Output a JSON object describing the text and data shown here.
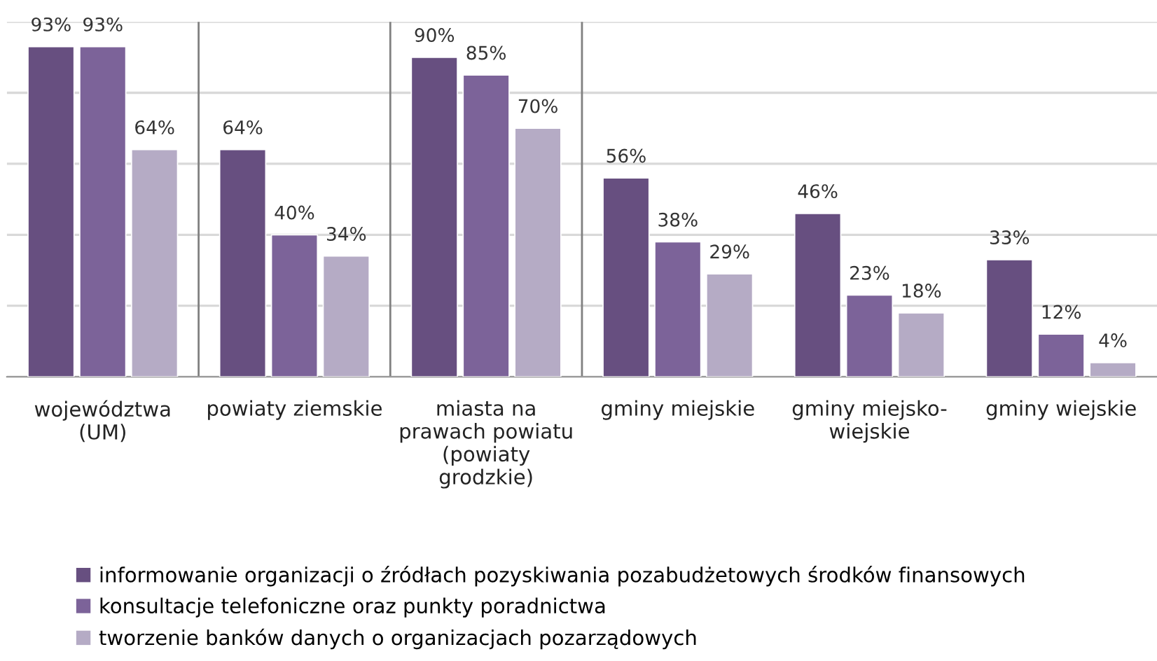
{
  "chart_data": {
    "type": "bar",
    "categories": [
      "województwa\n(UM)",
      "powiaty ziemskie",
      "miasta na\nprawach powiatu\n(powiaty\ngrodzkie)",
      "gminy miejskie",
      "gminy miejsko-\nwiejskie",
      "gminy wiejskie"
    ],
    "series": [
      {
        "name": "informowanie organizacji o źródłach pozyskiwania pozabudżetowych środków finansowych",
        "color": "#674f80",
        "values": [
          93,
          64,
          90,
          56,
          46,
          33
        ],
        "value_labels": [
          "93%",
          "64%",
          "90%",
          "56%",
          "46%",
          "33%"
        ]
      },
      {
        "name": "konsultacje telefoniczne oraz punkty poradnictwa",
        "color": "#7c6399",
        "values": [
          93,
          40,
          85,
          38,
          23,
          12
        ],
        "value_labels": [
          "93%",
          "40%",
          "85%",
          "38%",
          "23%",
          "12%"
        ]
      },
      {
        "name": "tworzenie banków danych o organizacjach pozarządowych",
        "color": "#b5abc5",
        "values": [
          64,
          34,
          70,
          29,
          18,
          4
        ],
        "value_labels": [
          "64%",
          "34%",
          "70%",
          "29%",
          "18%",
          "4%"
        ]
      }
    ],
    "ylim": [
      0,
      100
    ],
    "yticks": [
      {
        "value": 0,
        "label": null
      },
      {
        "value": 20,
        "label": null
      },
      {
        "value": 40,
        "label": null
      },
      {
        "value": 60,
        "label": null
      },
      {
        "value": 80,
        "label": null
      },
      {
        "value": 100,
        "label": null
      }
    ],
    "grid": "y",
    "legend": "bottom",
    "tick_labels": "x"
  }
}
